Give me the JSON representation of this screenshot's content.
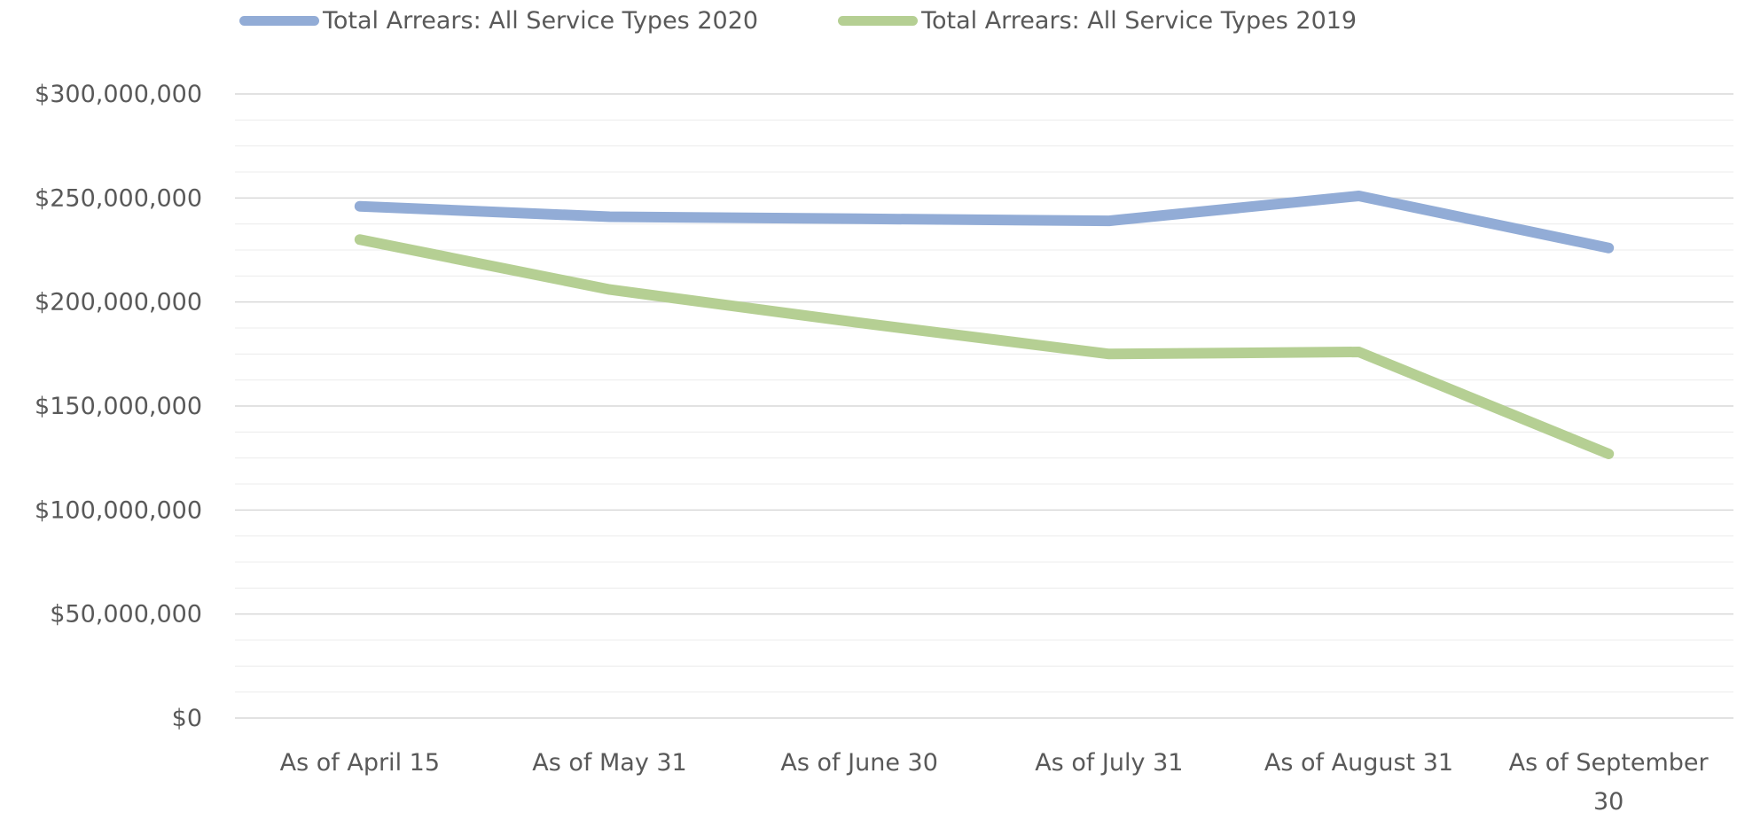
{
  "chart_data": {
    "type": "line",
    "title": "",
    "xlabel": "",
    "ylabel": "",
    "categories": [
      "As of April 15",
      "As of May 31",
      "As of June 30",
      "As of July 31",
      "As of August 31",
      "As of September 30"
    ],
    "category_lines": [
      [
        "As of April 15"
      ],
      [
        "As of May 31"
      ],
      [
        "As of June 30"
      ],
      [
        "As of July 31"
      ],
      [
        "As of August 31"
      ],
      [
        "As of September",
        "30"
      ]
    ],
    "series": [
      {
        "name": "Total Arrears: All Service Types 2020",
        "color": "#92acd6",
        "values": [
          246000000,
          241000000,
          240000000,
          239000000,
          251000000,
          226000000
        ]
      },
      {
        "name": "Total Arrears: All Service Types 2019",
        "color": "#b5cf93",
        "values": [
          230000000,
          206000000,
          190000000,
          175000000,
          176000000,
          127000000
        ]
      }
    ],
    "ylim": [
      0,
      300000000
    ],
    "yticks": [
      0,
      50000000,
      100000000,
      150000000,
      200000000,
      250000000,
      300000000
    ],
    "ytick_labels": [
      "$0",
      "$50,000,000",
      "$100,000,000",
      "$150,000,000",
      "$200,000,000",
      "$250,000,000",
      "$300,000,000"
    ],
    "grid": true,
    "legend": "top"
  }
}
